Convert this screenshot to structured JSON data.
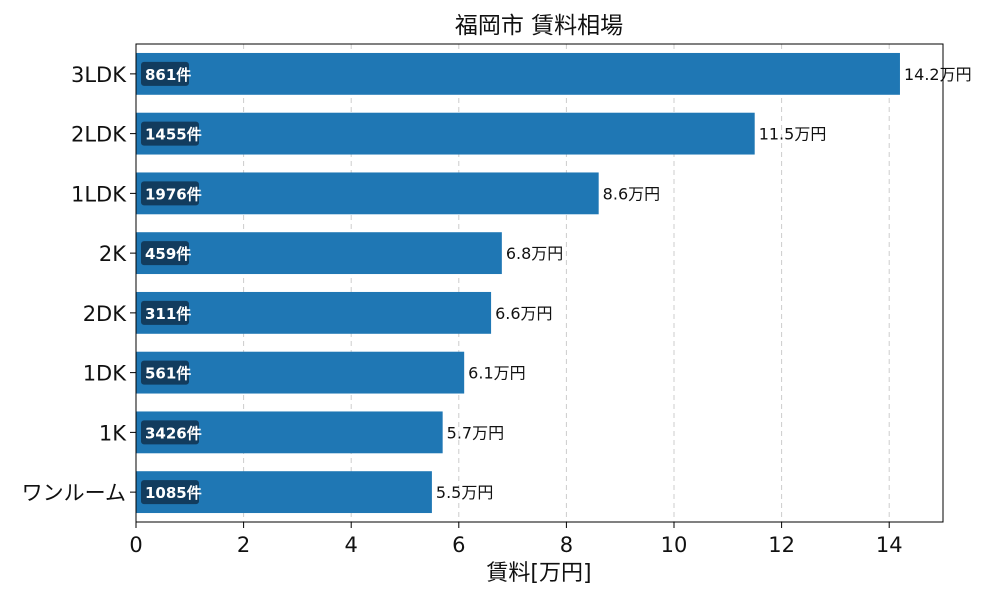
{
  "chart_data": {
    "type": "bar",
    "orientation": "horizontal",
    "title": "福岡市 賃料相場",
    "xlabel": "賃料[万円]",
    "ylabel": "",
    "xlim": [
      0,
      15
    ],
    "xticks": [
      0,
      2,
      4,
      6,
      8,
      10,
      12,
      14
    ],
    "grid": "x",
    "categories": [
      "3LDK",
      "2LDK",
      "1LDK",
      "2K",
      "2DK",
      "1DK",
      "1K",
      "ワンルーム"
    ],
    "values": [
      14.2,
      11.5,
      8.6,
      6.8,
      6.6,
      6.1,
      5.7,
      5.5
    ],
    "value_labels": [
      "14.2万円",
      "11.5万円",
      "8.6万円",
      "6.8万円",
      "6.6万円",
      "6.1万円",
      "5.7万円",
      "5.5万円"
    ],
    "count_labels": [
      "861件",
      "1455件",
      "1976件",
      "459件",
      "311件",
      "561件",
      "3426件",
      "1085件"
    ],
    "colors": {
      "bar": "#1f77b4",
      "count_badge": "#123c5e",
      "grid": "#cccccc"
    }
  }
}
